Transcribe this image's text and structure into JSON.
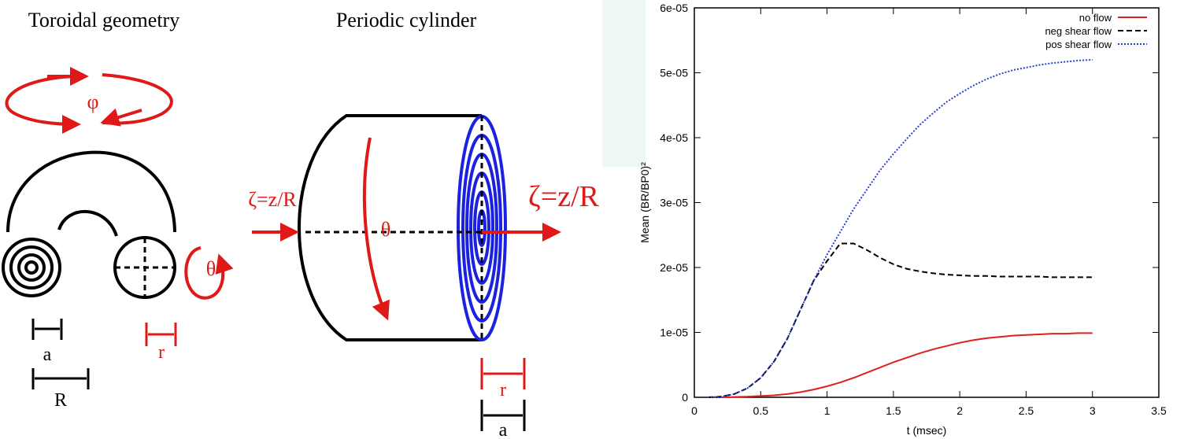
{
  "diagram": {
    "toroidal_title": "Toroidal geometry",
    "cylinder_title": "Periodic cylinder",
    "phi": "φ",
    "theta_torus": "θ",
    "a_torus": "a",
    "R_torus": "R",
    "r_torus": "r",
    "zeta_left": "ζ=z/R",
    "zeta_right": "ζ=z/R",
    "theta_cyl": "θ",
    "r_cyl": "r",
    "a_cyl": "a"
  },
  "chart_data": {
    "type": "line",
    "xlabel": "t (msec)",
    "ylabel": "Mean (BR/BP0)²",
    "xlim": [
      0,
      3.5
    ],
    "xticks": [
      0,
      0.5,
      1,
      1.5,
      2,
      2.5,
      3,
      3.5
    ],
    "ylim": [
      0,
      6e-05
    ],
    "yticks": [
      {
        "value": 0,
        "label": "0"
      },
      {
        "value": 1e-05,
        "label": "1e-05"
      },
      {
        "value": 2e-05,
        "label": "2e-05"
      },
      {
        "value": 3e-05,
        "label": "3e-05"
      },
      {
        "value": 4e-05,
        "label": "4e-05"
      },
      {
        "value": 5e-05,
        "label": "5e-05"
      },
      {
        "value": 6e-05,
        "label": "6e-05"
      }
    ],
    "legend": "upper-right",
    "x": [
      0.1,
      0.2,
      0.3,
      0.4,
      0.5,
      0.6,
      0.7,
      0.8,
      0.9,
      1.0,
      1.1,
      1.2,
      1.3,
      1.4,
      1.5,
      1.6,
      1.7,
      1.8,
      1.9,
      2.0,
      2.1,
      2.2,
      2.3,
      2.4,
      2.5,
      2.6,
      2.7,
      2.8,
      2.9,
      3.0
    ],
    "series": [
      {
        "name": "no flow",
        "color": "#e02020",
        "dash": "solid",
        "values": [
          0,
          0,
          5e-08,
          1e-07,
          2e-07,
          3e-07,
          5e-07,
          8e-07,
          1.2e-06,
          1.7e-06,
          2.3e-06,
          3e-06,
          3.8e-06,
          4.6e-06,
          5.4e-06,
          6.1e-06,
          6.8e-06,
          7.4e-06,
          7.9e-06,
          8.4e-06,
          8.8e-06,
          9.1e-06,
          9.3e-06,
          9.5e-06,
          9.6e-06,
          9.7e-06,
          9.8e-06,
          9.8e-06,
          9.9e-06,
          9.9e-06
        ]
      },
      {
        "name": "neg shear flow",
        "color": "#000000",
        "dash": "dashed",
        "values": [
          0,
          1e-07,
          5e-07,
          1.4e-06,
          3e-06,
          5.5e-06,
          9e-06,
          1.35e-05,
          1.8e-05,
          2.1e-05,
          2.37e-05,
          2.37e-05,
          2.27e-05,
          2.15e-05,
          2.05e-05,
          1.98e-05,
          1.94e-05,
          1.91e-05,
          1.89e-05,
          1.88e-05,
          1.87e-05,
          1.87e-05,
          1.86e-05,
          1.86e-05,
          1.86e-05,
          1.86e-05,
          1.85e-05,
          1.85e-05,
          1.85e-05,
          1.85e-05
        ]
      },
      {
        "name": "pos shear flow",
        "color": "#2a3fd0",
        "dash": "dotted",
        "values": [
          0,
          1e-07,
          5e-07,
          1.4e-06,
          3e-06,
          5.5e-06,
          9e-06,
          1.35e-05,
          1.8e-05,
          2.2e-05,
          2.55e-05,
          2.9e-05,
          3.2e-05,
          3.5e-05,
          3.75e-05,
          3.98e-05,
          4.2e-05,
          4.38e-05,
          4.55e-05,
          4.68e-05,
          4.8e-05,
          4.9e-05,
          4.98e-05,
          5.04e-05,
          5.08e-05,
          5.12e-05,
          5.15e-05,
          5.17e-05,
          5.19e-05,
          5.2e-05
        ]
      }
    ]
  }
}
